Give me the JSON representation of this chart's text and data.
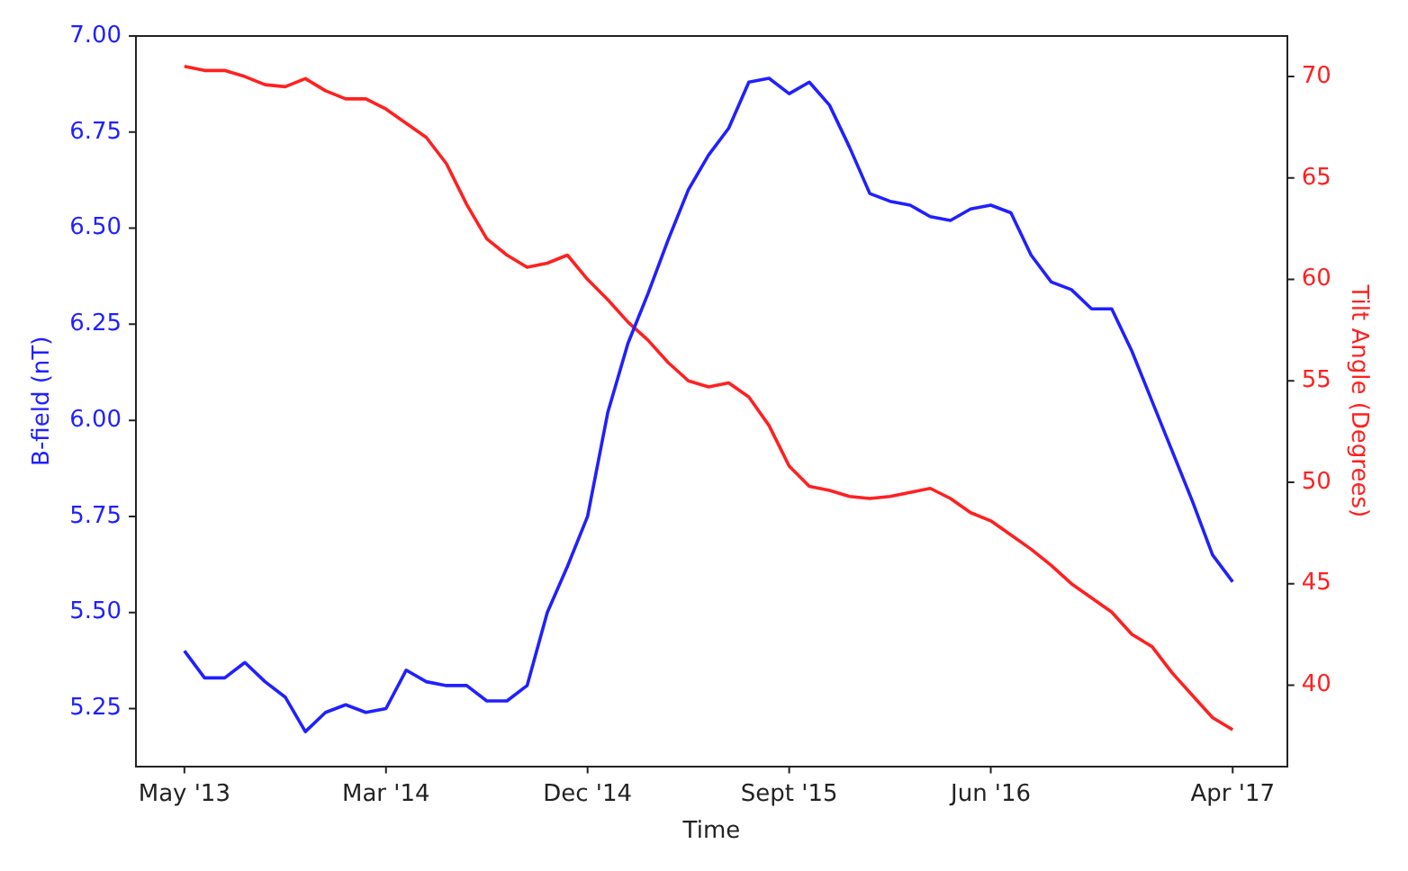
{
  "chart_data": {
    "type": "line",
    "xlabel": "Time",
    "ylabel": "B-field (nT)",
    "y2label": "Tilt Angle (Degrees)",
    "categories": [
      "May '13",
      null,
      null,
      null,
      null,
      null,
      null,
      null,
      null,
      null,
      "Mar '14",
      null,
      null,
      null,
      null,
      null,
      null,
      null,
      null,
      null,
      "Dec '14",
      null,
      null,
      null,
      null,
      null,
      null,
      null,
      null,
      null,
      "Sept '15",
      null,
      null,
      null,
      null,
      null,
      null,
      null,
      null,
      null,
      "Jun '16",
      null,
      null,
      null,
      null,
      null,
      null,
      null,
      null,
      null,
      null,
      null,
      "Apr '17"
    ],
    "series": [
      {
        "color": "#2020ff",
        "values": [
          5.4,
          5.33,
          5.33,
          5.37,
          5.32,
          5.28,
          5.19,
          5.24,
          5.26,
          5.24,
          5.25,
          5.35,
          5.32,
          5.31,
          5.31,
          5.27,
          5.27,
          5.31,
          5.5,
          5.62,
          5.75,
          6.02,
          6.2,
          6.33,
          6.47,
          6.6,
          6.69,
          6.76,
          6.88,
          6.89,
          6.85,
          6.88,
          6.82,
          6.71,
          6.59,
          6.57,
          6.56,
          6.53,
          6.52,
          6.55,
          6.56,
          6.54,
          6.43,
          6.36,
          6.34,
          6.29,
          6.29,
          6.18,
          6.05,
          5.92,
          5.79,
          5.65,
          5.58
        ]
      },
      {
        "color": "#ff2020",
        "axis": "y2",
        "values": [
          70.5,
          70.3,
          70.3,
          70.0,
          69.6,
          69.5,
          69.9,
          69.3,
          68.9,
          68.9,
          68.4,
          67.7,
          67.0,
          65.7,
          63.7,
          62.0,
          61.2,
          60.6,
          60.8,
          61.2,
          60.0,
          59.0,
          57.9,
          57.0,
          55.9,
          55.0,
          54.7,
          54.9,
          54.2,
          52.8,
          50.8,
          49.8,
          49.6,
          49.3,
          49.2,
          49.3,
          49.5,
          49.7,
          49.2,
          48.5,
          48.1,
          47.4,
          46.7,
          45.9,
          45.0,
          44.3,
          43.6,
          42.5,
          41.9,
          40.6,
          39.5,
          38.4,
          37.8
        ]
      }
    ],
    "ylim": [
      5.1,
      7.0
    ],
    "yticks": [
      {
        "value": 5.25,
        "label": "5.25"
      },
      {
        "value": 5.5,
        "label": "5.50"
      },
      {
        "value": 5.75,
        "label": "5.75"
      },
      {
        "value": 6,
        "label": "6.00"
      },
      {
        "value": 6.25,
        "label": "6.25"
      },
      {
        "value": 6.5,
        "label": "6.50"
      },
      {
        "value": 6.75,
        "label": "6.75"
      },
      {
        "value": 7,
        "label": "7.00"
      }
    ],
    "y2lim": [
      36,
      72
    ],
    "y2ticks": [
      40,
      45,
      50,
      55,
      60,
      65,
      70
    ],
    "grid": false,
    "legend": false,
    "marker": "none",
    "line_style": "solid"
  }
}
